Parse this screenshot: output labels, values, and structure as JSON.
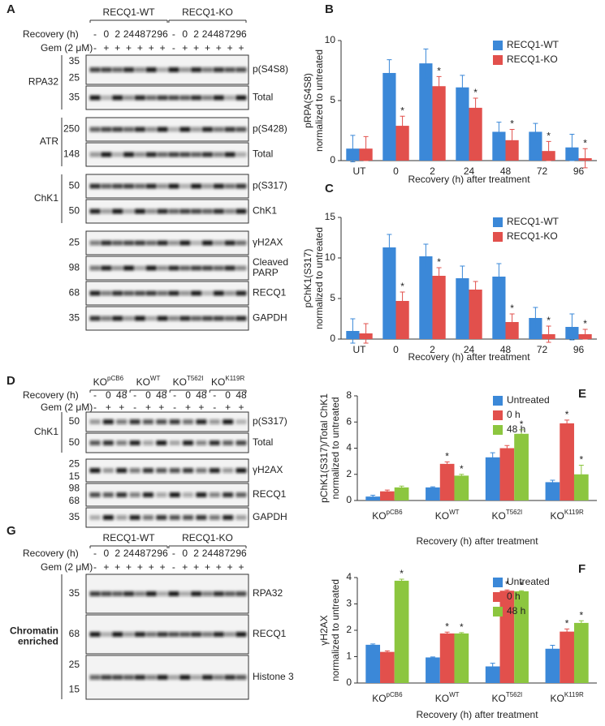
{
  "blots": [
    {
      "panel": "A",
      "groups": [
        "RECQ1-WT",
        "RECQ1-KO"
      ],
      "recovery_label": "Recovery  (h)",
      "recovery": [
        "-",
        "0",
        "2",
        "24",
        "48",
        "72",
        "96",
        "-",
        "0",
        "2",
        "24",
        "48",
        "72",
        "96"
      ],
      "gem_label": "Gem (2 μM)",
      "gem": [
        "-",
        "+",
        "+",
        "+",
        "+",
        "+",
        "+",
        "-",
        "+",
        "+",
        "+",
        "+",
        "+",
        "+"
      ],
      "sections": [
        {
          "name": "RPA32",
          "rows": [
            {
              "label": "p(S4S8)",
              "markers": [
                "35",
                "25"
              ]
            },
            {
              "label": "Total",
              "markers": [
                "35"
              ]
            }
          ]
        },
        {
          "name": "ATR",
          "rows": [
            {
              "label": "p(S428)",
              "markers": [
                "250"
              ]
            },
            {
              "label": "Total",
              "markers": [
                "148"
              ]
            }
          ]
        },
        {
          "name": "ChK1",
          "rows": [
            {
              "label": "p(S317)",
              "markers": [
                "50"
              ]
            },
            {
              "label": "ChK1",
              "markers": [
                "50"
              ]
            }
          ]
        },
        {
          "rows": [
            {
              "label": "γH2AX",
              "markers": [
                "25"
              ]
            },
            {
              "label": [
                "Cleaved",
                "PARP"
              ],
              "markers": [
                "98"
              ]
            },
            {
              "label": "RECQ1",
              "markers": [
                "68"
              ]
            },
            {
              "label": "GAPDH",
              "markers": [
                "35"
              ]
            }
          ]
        }
      ]
    },
    {
      "panel": "D",
      "groups": [
        {
          "label": "KO",
          "sup": "pCB6"
        },
        {
          "label": "KO",
          "sup": "WT"
        },
        {
          "label": "KO",
          "sup": "T562I"
        },
        {
          "label": "KO",
          "sup": "K119R"
        }
      ],
      "recovery_label": "Recovery  (h)",
      "recovery": [
        "-",
        "0",
        "48",
        "-",
        "0",
        "48",
        "-",
        "0",
        "48",
        "-",
        "0",
        "48"
      ],
      "gem_label": "Gem (2 μM)",
      "gem": [
        "-",
        "+",
        "+",
        "-",
        "+",
        "+",
        "-",
        "+",
        "+",
        "-",
        "+",
        "+"
      ],
      "sections": [
        {
          "name": "ChK1",
          "rows": [
            {
              "label": "p(S317)",
              "markers": [
                "50"
              ]
            },
            {
              "label": "Total",
              "markers": [
                "50"
              ]
            }
          ]
        },
        {
          "rows": [
            {
              "label": "γH2AX",
              "markers": [
                "25",
                "15"
              ]
            },
            {
              "label": "RECQ1",
              "markers": [
                "98",
                "68"
              ]
            },
            {
              "label": "GAPDH",
              "markers": [
                "35"
              ]
            }
          ]
        }
      ]
    },
    {
      "panel": "G",
      "groups": [
        "RECQ1-WT",
        "RECQ1-KO"
      ],
      "recovery_label": "Recovery  (h)",
      "recovery": [
        "-",
        "0",
        "2",
        "24",
        "48",
        "72",
        "96",
        "-",
        "0",
        "2",
        "24",
        "48",
        "72",
        "96"
      ],
      "gem_label": "Gem (2 μM)",
      "gem": [
        "-",
        "+",
        "+",
        "+",
        "+",
        "+",
        "+",
        "-",
        "+",
        "+",
        "+",
        "+",
        "+",
        "+"
      ],
      "sections": [
        {
          "name": [
            "Chromatin",
            "enriched"
          ],
          "rows": [
            {
              "label": "RPA32",
              "markers": [
                "35"
              ]
            },
            {
              "label": "RECQ1",
              "markers": [
                "68"
              ]
            },
            {
              "label": "Histone 3",
              "markers": [
                "25",
                "15"
              ]
            }
          ]
        }
      ]
    }
  ],
  "chart_data": [
    {
      "type": "bar",
      "panel": "B",
      "ylabel": [
        "pRPA(S4S8)",
        "normalized to untreated"
      ],
      "xlabel": "Recovery  (h) after treatment",
      "categories": [
        "UT",
        "0",
        "2",
        "24",
        "48",
        "72",
        "96"
      ],
      "series": [
        {
          "name": "RECQ1-WT",
          "color": "#3b88d8",
          "values": [
            1,
            7.3,
            8.1,
            6.1,
            2.4,
            2.4,
            1.1
          ],
          "errors": [
            1.1,
            1.1,
            1.2,
            1.0,
            0.8,
            0.7,
            1.1
          ]
        },
        {
          "name": "RECQ1-KO",
          "color": "#e2504c",
          "values": [
            1,
            2.9,
            6.2,
            4.4,
            1.7,
            0.8,
            0.2
          ],
          "errors": [
            1.0,
            0.8,
            0.8,
            0.8,
            0.9,
            0.8,
            0.8
          ],
          "significance": [
            null,
            "*",
            "*",
            "*",
            "*",
            "*",
            "*"
          ]
        }
      ],
      "ylim": [
        0,
        10
      ],
      "yticks": [
        0,
        5,
        10
      ],
      "legend": "upper right"
    },
    {
      "type": "bar",
      "panel": "C",
      "ylabel": [
        "pChK1(S317)",
        "normalized to untreated"
      ],
      "xlabel": "Recovery  (h) after treatment",
      "categories": [
        "UT",
        "0",
        "2",
        "24",
        "48",
        "72",
        "96"
      ],
      "series": [
        {
          "name": "RECQ1-WT",
          "color": "#3b88d8",
          "values": [
            1,
            11.3,
            10.2,
            7.5,
            7.7,
            2.6,
            1.5
          ],
          "errors": [
            1.5,
            1.6,
            1.5,
            1.5,
            1.6,
            1.3,
            1.6
          ]
        },
        {
          "name": "RECQ1-KO",
          "color": "#e2504c",
          "values": [
            0.7,
            4.7,
            7.8,
            6.1,
            2.1,
            0.6,
            0.6
          ],
          "errors": [
            1.2,
            1.1,
            1.0,
            1.0,
            1.0,
            1.0,
            0.6
          ],
          "significance": [
            null,
            "*",
            "*",
            null,
            "*",
            "*",
            "*"
          ]
        }
      ],
      "ylim": [
        0,
        15
      ],
      "yticks": [
        0,
        5,
        10,
        15
      ],
      "legend": "upper right"
    },
    {
      "type": "bar",
      "panel": "E",
      "ylabel": [
        "pChK1(S317)/Total  ChK1",
        "normalized to untreated"
      ],
      "xlabel": "Recovery (h) after treatment",
      "categories": [
        {
          "label": "KO",
          "sup": "pCB6"
        },
        {
          "label": "KO",
          "sup": "WT"
        },
        {
          "label": "KO",
          "sup": "T562I"
        },
        {
          "label": "KO",
          "sup": "K119R"
        }
      ],
      "series": [
        {
          "name": "Untreated",
          "color": "#3b88d8",
          "values": [
            0.3,
            1.0,
            3.3,
            1.4
          ],
          "errors": [
            0.1,
            0.05,
            0.35,
            0.15
          ]
        },
        {
          "name": "0 h",
          "color": "#e2504c",
          "values": [
            0.7,
            2.8,
            4.0,
            5.9
          ],
          "errors": [
            0.1,
            0.15,
            0.2,
            0.25
          ],
          "significance": [
            null,
            "*",
            null,
            "*"
          ]
        },
        {
          "name": "48 h",
          "color": "#8cc63f",
          "values": [
            1.0,
            1.9,
            5.1,
            2.0
          ],
          "errors": [
            0.1,
            0.1,
            0.3,
            0.7
          ],
          "significance": [
            null,
            "*",
            "*",
            "*"
          ]
        }
      ],
      "ylim": [
        0,
        8
      ],
      "yticks": [
        0,
        2,
        4,
        6,
        8
      ],
      "legend": "upper right"
    },
    {
      "type": "bar",
      "panel": "F",
      "ylabel": [
        "γH2AX",
        "normalized to untreated"
      ],
      "xlabel": "Recovery  (h) after treatment",
      "categories": [
        {
          "label": "KO",
          "sup": "pCB6"
        },
        {
          "label": "KO",
          "sup": "WT"
        },
        {
          "label": "KO",
          "sup": "T562I"
        },
        {
          "label": "KO",
          "sup": "K119R"
        }
      ],
      "series": [
        {
          "name": "Untreated",
          "color": "#3b88d8",
          "values": [
            1.45,
            0.97,
            0.63,
            1.3
          ],
          "errors": [
            0.03,
            0.02,
            0.12,
            0.13
          ]
        },
        {
          "name": "0 h",
          "color": "#e2504c",
          "values": [
            1.18,
            1.88,
            3.5,
            1.95
          ],
          "errors": [
            0.04,
            0.05,
            0.03,
            0.1
          ],
          "significance": [
            null,
            "*",
            "*",
            "*"
          ]
        },
        {
          "name": "48 h",
          "color": "#8cc63f",
          "values": [
            3.88,
            1.88,
            3.48,
            2.28
          ],
          "errors": [
            0.06,
            0.03,
            0.02,
            0.08
          ],
          "significance": [
            "*",
            "*",
            "*",
            "*"
          ]
        }
      ],
      "ylim": [
        0,
        4
      ],
      "yticks": [
        0,
        1,
        2,
        3,
        4
      ],
      "legend": "upper right"
    }
  ]
}
